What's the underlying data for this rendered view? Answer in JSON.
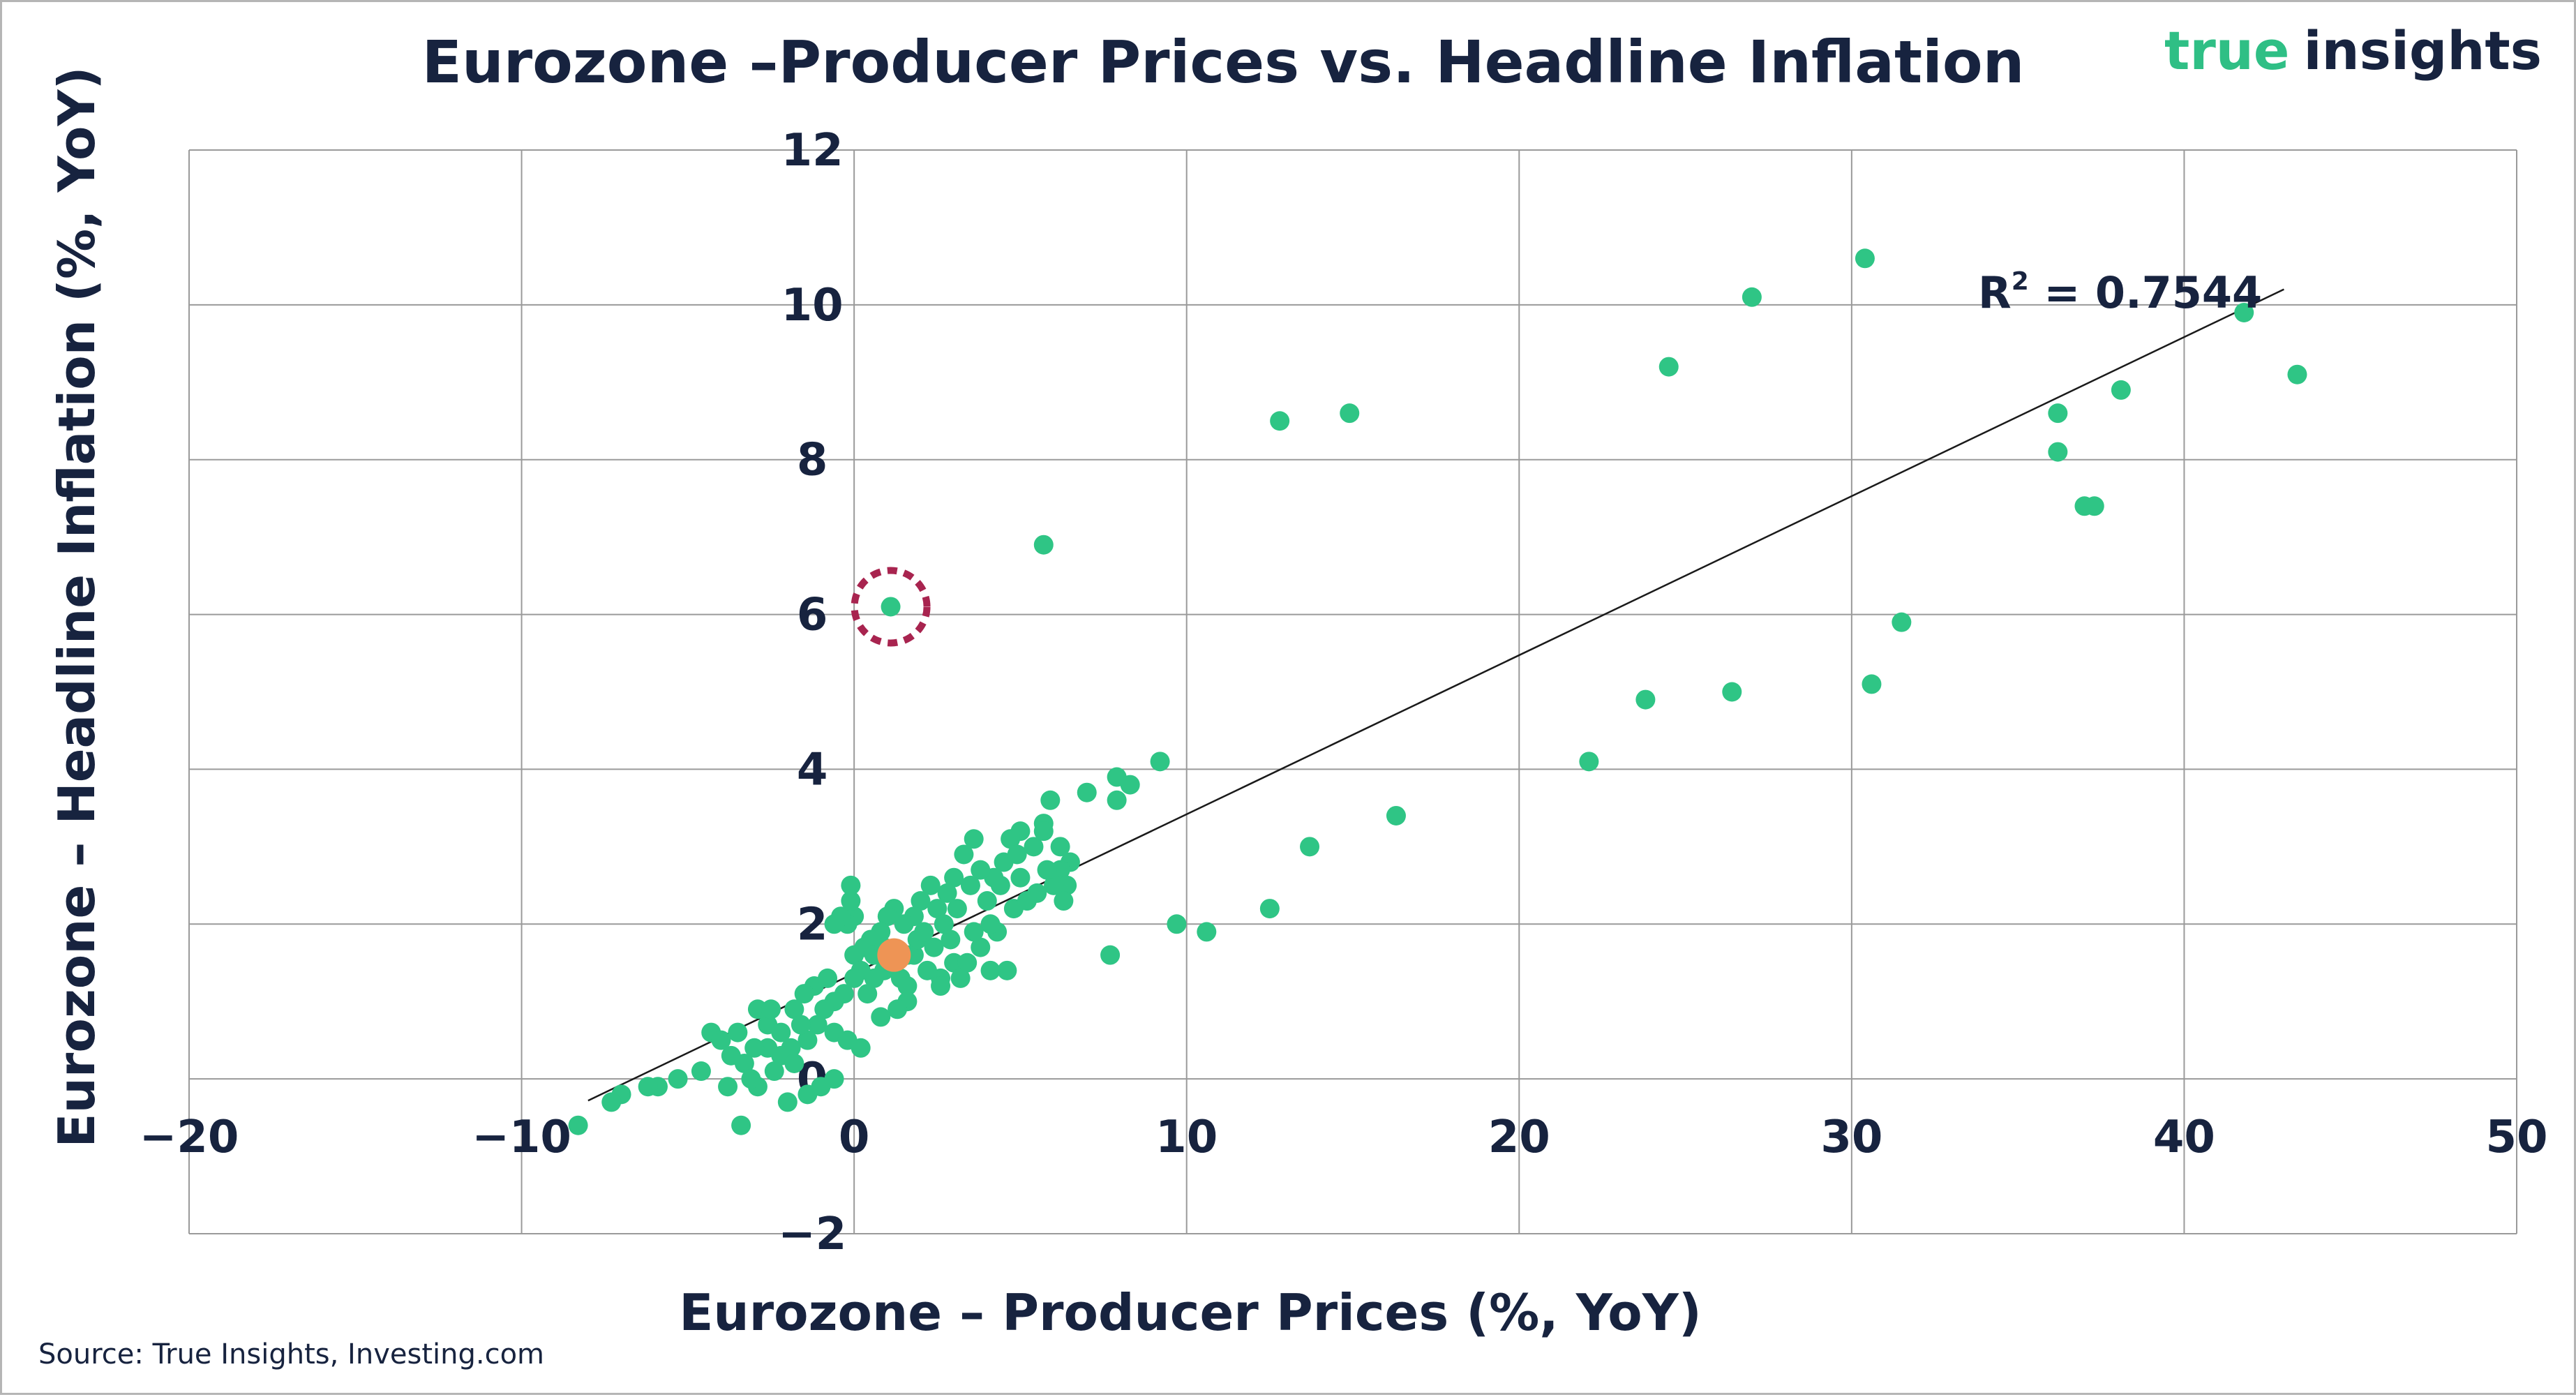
{
  "title": "Eurozone –Producer Prices vs. Headline Inflation",
  "brand": {
    "word1": "true",
    "word2": "insights"
  },
  "source": "Source: True Insights, Investing.com",
  "colors": {
    "points": "#2fc585",
    "highlight": "#ee9455",
    "circle": "#a8244f",
    "text": "#17233f",
    "grid": "#9a9a9a",
    "trendline": "#1a1a1a"
  },
  "chart_data": {
    "type": "scatter",
    "title": "Eurozone –Producer Prices vs. Headline Inflation",
    "xlabel": "Eurozone – Producer Prices (%, YoY)",
    "ylabel": "Eurozone – Headline Inflation (%, YoY)",
    "xlim": [
      -20,
      50
    ],
    "ylim": [
      -2,
      12
    ],
    "x_ticks": [
      -20,
      -10,
      0,
      10,
      20,
      30,
      40,
      50
    ],
    "y_ticks": [
      -2,
      0,
      2,
      4,
      6,
      8,
      10,
      12
    ],
    "x_tick_labels": [
      "−20",
      "−10",
      "0",
      "10",
      "20",
      "30",
      "40",
      "50"
    ],
    "y_tick_labels": [
      "−2",
      "0",
      "2",
      "4",
      "6",
      "8",
      "10",
      "12"
    ],
    "grid": true,
    "trendline": {
      "type": "linear",
      "x_start": -8,
      "y_start": -0.28,
      "x_end": 43,
      "y_end": 10.2,
      "label": "R",
      "label_sup": "2",
      "label_tail": " = 0.7544"
    },
    "highlight_point": {
      "x": 1.2,
      "y": 1.6
    },
    "circled_point": {
      "x": 1.1,
      "y": 6.1
    },
    "points": [
      [
        30.4,
        10.6
      ],
      [
        27.0,
        10.1
      ],
      [
        41.8,
        9.9
      ],
      [
        24.5,
        9.2
      ],
      [
        43.4,
        9.1
      ],
      [
        38.1,
        8.9
      ],
      [
        14.9,
        8.6
      ],
      [
        12.8,
        8.5
      ],
      [
        36.2,
        8.6
      ],
      [
        36.2,
        8.1
      ],
      [
        37.0,
        7.4
      ],
      [
        37.3,
        7.4
      ],
      [
        5.7,
        6.9
      ],
      [
        1.1,
        6.1
      ],
      [
        31.5,
        5.9
      ],
      [
        30.6,
        5.1
      ],
      [
        26.4,
        5.0
      ],
      [
        23.8,
        4.9
      ],
      [
        22.1,
        4.1
      ],
      [
        16.3,
        3.4
      ],
      [
        13.7,
        3.0
      ],
      [
        12.5,
        2.2
      ],
      [
        10.6,
        1.9
      ],
      [
        9.7,
        2.0
      ],
      [
        7.7,
        1.6
      ],
      [
        9.2,
        4.1
      ],
      [
        8.3,
        3.8
      ],
      [
        7.9,
        3.9
      ],
      [
        7.9,
        3.6
      ],
      [
        7.0,
        3.7
      ],
      [
        5.9,
        3.6
      ],
      [
        5.7,
        3.3
      ],
      [
        5.4,
        3.0
      ],
      [
        5.0,
        3.2
      ],
      [
        4.7,
        3.1
      ],
      [
        3.6,
        3.1
      ],
      [
        6.5,
        2.8
      ],
      [
        6.2,
        2.7
      ],
      [
        6.4,
        2.5
      ],
      [
        6.0,
        2.5
      ],
      [
        5.8,
        2.7
      ],
      [
        5.5,
        2.4
      ],
      [
        5.0,
        2.6
      ],
      [
        4.8,
        2.2
      ],
      [
        4.5,
        2.8
      ],
      [
        4.2,
        2.6
      ],
      [
        4.0,
        2.3
      ],
      [
        3.8,
        2.7
      ],
      [
        3.5,
        2.5
      ],
      [
        3.3,
        2.9
      ],
      [
        3.0,
        2.6
      ],
      [
        2.8,
        2.4
      ],
      [
        2.5,
        2.2
      ],
      [
        2.3,
        2.5
      ],
      [
        2.0,
        2.3
      ],
      [
        1.8,
        2.1
      ],
      [
        1.5,
        2.0
      ],
      [
        1.2,
        2.2
      ],
      [
        1.0,
        2.1
      ],
      [
        0.8,
        1.9
      ],
      [
        0.5,
        1.8
      ],
      [
        0.3,
        1.7
      ],
      [
        0.0,
        2.1
      ],
      [
        -0.2,
        2.0
      ],
      [
        -0.4,
        2.1
      ],
      [
        -0.6,
        2.0
      ],
      [
        -0.1,
        2.3
      ],
      [
        -0.1,
        2.5
      ],
      [
        0.0,
        1.6
      ],
      [
        0.2,
        1.4
      ],
      [
        0.6,
        1.6
      ],
      [
        0.9,
        1.4
      ],
      [
        1.4,
        1.3
      ],
      [
        1.8,
        1.6
      ],
      [
        2.2,
        1.4
      ],
      [
        2.6,
        1.3
      ],
      [
        3.0,
        1.5
      ],
      [
        3.4,
        1.5
      ],
      [
        3.8,
        1.7
      ],
      [
        4.3,
        1.9
      ],
      [
        4.6,
        1.4
      ],
      [
        4.1,
        1.4
      ],
      [
        3.2,
        1.3
      ],
      [
        2.6,
        1.2
      ],
      [
        1.6,
        1.2
      ],
      [
        1.6,
        1.0
      ],
      [
        1.3,
        0.9
      ],
      [
        0.8,
        0.8
      ],
      [
        0.4,
        1.1
      ],
      [
        0.0,
        1.3
      ],
      [
        -0.3,
        1.1
      ],
      [
        -0.6,
        1.0
      ],
      [
        -0.9,
        0.9
      ],
      [
        -1.2,
        1.2
      ],
      [
        -1.5,
        1.1
      ],
      [
        -1.8,
        0.9
      ],
      [
        -1.1,
        0.7
      ],
      [
        -0.6,
        0.6
      ],
      [
        -0.2,
        0.5
      ],
      [
        0.2,
        0.4
      ],
      [
        -1.4,
        0.5
      ],
      [
        -1.9,
        0.4
      ],
      [
        -2.2,
        0.6
      ],
      [
        -2.6,
        0.7
      ],
      [
        -2.9,
        0.9
      ],
      [
        -2.6,
        0.4
      ],
      [
        -2.2,
        0.3
      ],
      [
        -1.8,
        0.2
      ],
      [
        -2.4,
        0.1
      ],
      [
        -3.0,
        0.4
      ],
      [
        -3.3,
        0.2
      ],
      [
        -3.7,
        0.3
      ],
      [
        -4.3,
        0.6
      ],
      [
        -4.0,
        0.5
      ],
      [
        -4.6,
        0.1
      ],
      [
        -5.3,
        0.0
      ],
      [
        -5.9,
        -0.1
      ],
      [
        -6.2,
        -0.1
      ],
      [
        -7.0,
        -0.2
      ],
      [
        -7.3,
        -0.3
      ],
      [
        -8.3,
        -0.6
      ],
      [
        -3.4,
        -0.6
      ],
      [
        -2.0,
        -0.3
      ],
      [
        -2.9,
        -0.1
      ],
      [
        -3.8,
        -0.1
      ],
      [
        -1.4,
        -0.2
      ],
      [
        -1.0,
        -0.1
      ],
      [
        -0.6,
        0.0
      ],
      [
        -3.1,
        0.0
      ],
      [
        5.2,
        2.3
      ],
      [
        6.3,
        2.3
      ],
      [
        4.1,
        2.0
      ],
      [
        3.6,
        1.9
      ],
      [
        2.9,
        1.8
      ],
      [
        2.4,
        1.7
      ],
      [
        1.9,
        1.8
      ],
      [
        0.9,
        1.7
      ],
      [
        5.7,
        3.2
      ],
      [
        6.2,
        3.0
      ],
      [
        4.9,
        2.9
      ],
      [
        4.4,
        2.5
      ],
      [
        3.1,
        2.2
      ],
      [
        2.7,
        2.0
      ],
      [
        1.6,
        1.6
      ],
      [
        2.1,
        1.9
      ],
      [
        0.6,
        1.3
      ],
      [
        -0.8,
        1.3
      ],
      [
        -1.6,
        0.7
      ],
      [
        -2.5,
        0.9
      ],
      [
        -3.5,
        0.6
      ]
    ]
  }
}
